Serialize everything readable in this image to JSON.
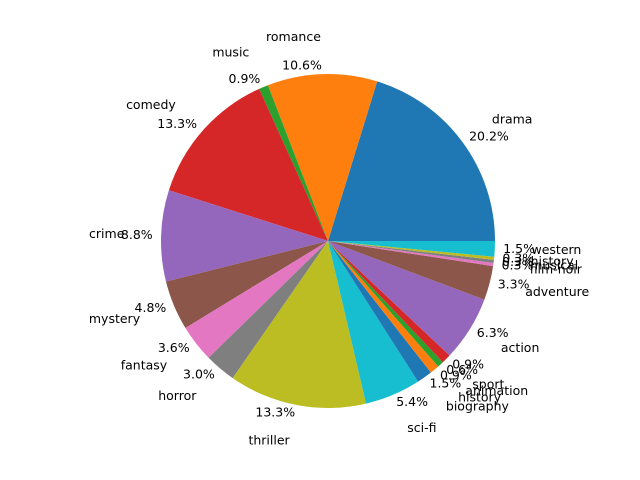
{
  "chart_data": {
    "type": "pie",
    "title": "",
    "start_angle_deg": 0,
    "direction": "counterclockwise",
    "slices": [
      {
        "label": "drama",
        "value": 20.2,
        "pct_label": "20.2%",
        "color": "#1f77b4"
      },
      {
        "label": "romance",
        "value": 10.6,
        "pct_label": "10.6%",
        "color": "#ff7f0e"
      },
      {
        "label": "music",
        "value": 0.9,
        "pct_label": "0.9%",
        "color": "#2ca02c"
      },
      {
        "label": "comedy",
        "value": 13.3,
        "pct_label": "13.3%",
        "color": "#d62728"
      },
      {
        "label": "crime",
        "value": 8.8,
        "pct_label": "8.8%",
        "color": "#9467bd"
      },
      {
        "label": "mystery",
        "value": 4.8,
        "pct_label": "4.8%",
        "color": "#8c564b"
      },
      {
        "label": "fantasy",
        "value": 3.6,
        "pct_label": "3.6%",
        "color": "#e377c2"
      },
      {
        "label": "horror",
        "value": 3.0,
        "pct_label": "3.0%",
        "color": "#7f7f7f"
      },
      {
        "label": "thriller",
        "value": 13.3,
        "pct_label": "13.3%",
        "color": "#bcbd22"
      },
      {
        "label": "sci-fi",
        "value": 5.4,
        "pct_label": "5.4%",
        "color": "#17becf"
      },
      {
        "label": "biography",
        "value": 1.5,
        "pct_label": "1.5%",
        "color": "#1f77b4"
      },
      {
        "label": "history",
        "value": 0.9,
        "pct_label": "0.9%",
        "color": "#ff7f0e"
      },
      {
        "label": "animation",
        "value": 0.6,
        "pct_label": "0.6%",
        "color": "#2ca02c"
      },
      {
        "label": "sport",
        "value": 0.9,
        "pct_label": "0.9%",
        "color": "#d62728"
      },
      {
        "label": "action",
        "value": 6.3,
        "pct_label": "6.3%",
        "color": "#9467bd"
      },
      {
        "label": "adventure",
        "value": 3.3,
        "pct_label": "3.3%",
        "color": "#8c564b"
      },
      {
        "label": "film-noir",
        "value": 0.3,
        "pct_label": "0.3%",
        "color": "#e377c2"
      },
      {
        "label": "musical",
        "value": 0.3,
        "pct_label": "0.3%",
        "color": "#7f7f7f"
      },
      {
        "label": "history",
        "value": 0.3,
        "pct_label": "0.3%",
        "color": "#bcbd22"
      },
      {
        "label": "western",
        "value": 1.5,
        "pct_label": "1.5%",
        "color": "#17becf"
      }
    ]
  }
}
